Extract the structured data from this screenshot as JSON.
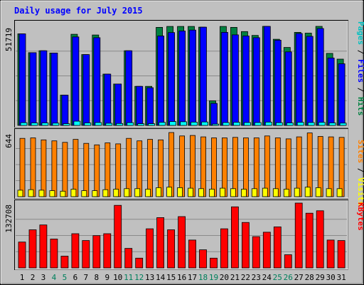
{
  "title": "Daily usage for July 2015",
  "colors": {
    "background": "#c0c0c0",
    "plot_bg": "#c0c0c0",
    "grid": "#8a8a8a",
    "hits": "#008040",
    "files": "#0000ff",
    "pages": "#00ffff",
    "visits": "#ffff00",
    "sites": "#ff8000",
    "kbytes": "#ff0000",
    "title": "#0000ff",
    "weekend_label": "#00805c"
  },
  "chart_data": [
    {
      "type": "bar",
      "panel": "hits_files_pages",
      "max_label": "51719",
      "ymax": 51719,
      "legend": [
        {
          "text": "Pages",
          "color": "#00c0c0"
        },
        {
          "text": " / ",
          "color": "#000000"
        },
        {
          "text": "Files",
          "color": "#0000ff"
        },
        {
          "text": " / ",
          "color": "#000000"
        },
        {
          "text": "Hits",
          "color": "#008040"
        }
      ],
      "series": [
        {
          "name": "Hits",
          "values": [
            47800,
            38000,
            39000,
            37800,
            15800,
            47600,
            37000,
            47200,
            26800,
            21600,
            39000,
            20400,
            20400,
            51200,
            51700,
            51700,
            51700,
            51300,
            12800,
            51700,
            51200,
            49000,
            47000,
            51719,
            45000,
            40700,
            48600,
            48200,
            51719,
            37600,
            34600
          ]
        },
        {
          "name": "Files",
          "values": [
            47800,
            38000,
            39000,
            37800,
            15800,
            46200,
            37000,
            45800,
            26800,
            21600,
            39000,
            20400,
            19700,
            46700,
            48500,
            49300,
            49800,
            51300,
            11500,
            48600,
            47300,
            46700,
            45800,
            51719,
            44500,
            38400,
            48000,
            46500,
            50600,
            35200,
            32200
          ]
        },
        {
          "name": "Pages",
          "values": [
            1400,
            1300,
            1300,
            1200,
            900,
            2200,
            1300,
            1500,
            1100,
            1000,
            1400,
            900,
            900,
            1600,
            2000,
            1900,
            1700,
            1800,
            700,
            1500,
            1600,
            1500,
            1500,
            1700,
            1400,
            1300,
            1600,
            1500,
            1600,
            1300,
            1200
          ]
        }
      ]
    },
    {
      "type": "bar",
      "panel": "visits_sites",
      "max_label": "644",
      "ymax": 644,
      "legend": [
        {
          "text": "Sites",
          "color": "#ff8000"
        },
        {
          "text": " / ",
          "color": "#000000"
        },
        {
          "text": "Visits",
          "color": "#ffff00"
        }
      ],
      "series": [
        {
          "name": "Sites",
          "values": [
            585,
            590,
            570,
            560,
            545,
            575,
            535,
            520,
            540,
            530,
            585,
            560,
            575,
            570,
            644,
            610,
            615,
            600,
            590,
            590,
            595,
            590,
            590,
            610,
            590,
            580,
            600,
            640,
            605,
            600,
            595
          ]
        },
        {
          "name": "Visits",
          "values": [
            65,
            70,
            65,
            60,
            55,
            75,
            60,
            60,
            70,
            75,
            80,
            80,
            75,
            90,
            95,
            90,
            85,
            80,
            75,
            85,
            80,
            75,
            80,
            85,
            80,
            75,
            85,
            95,
            90,
            80,
            80
          ]
        }
      ]
    },
    {
      "type": "bar",
      "panel": "kbytes",
      "max_label": "132708",
      "ymax": 132708,
      "legend": [
        {
          "text": "KBytes",
          "color": "#ff0000"
        }
      ],
      "series": [
        {
          "name": "KBytes",
          "values": [
            53000,
            78000,
            88000,
            59000,
            24000,
            70000,
            56000,
            66000,
            70000,
            128000,
            40000,
            20000,
            80000,
            103000,
            78000,
            105000,
            57000,
            37000,
            20000,
            80000,
            125000,
            93000,
            64000,
            73000,
            84000,
            27000,
            132708,
            112000,
            117000,
            57000,
            56000
          ]
        }
      ]
    }
  ],
  "days": [
    "1",
    "2",
    "3",
    "4",
    "5",
    "6",
    "7",
    "8",
    "9",
    "10",
    "11",
    "12",
    "13",
    "14",
    "15",
    "16",
    "17",
    "18",
    "19",
    "20",
    "21",
    "22",
    "23",
    "24",
    "25",
    "26",
    "27",
    "28",
    "29",
    "30",
    "31"
  ],
  "weekend_days": [
    "4",
    "5",
    "11",
    "12",
    "18",
    "19",
    "25",
    "26"
  ]
}
